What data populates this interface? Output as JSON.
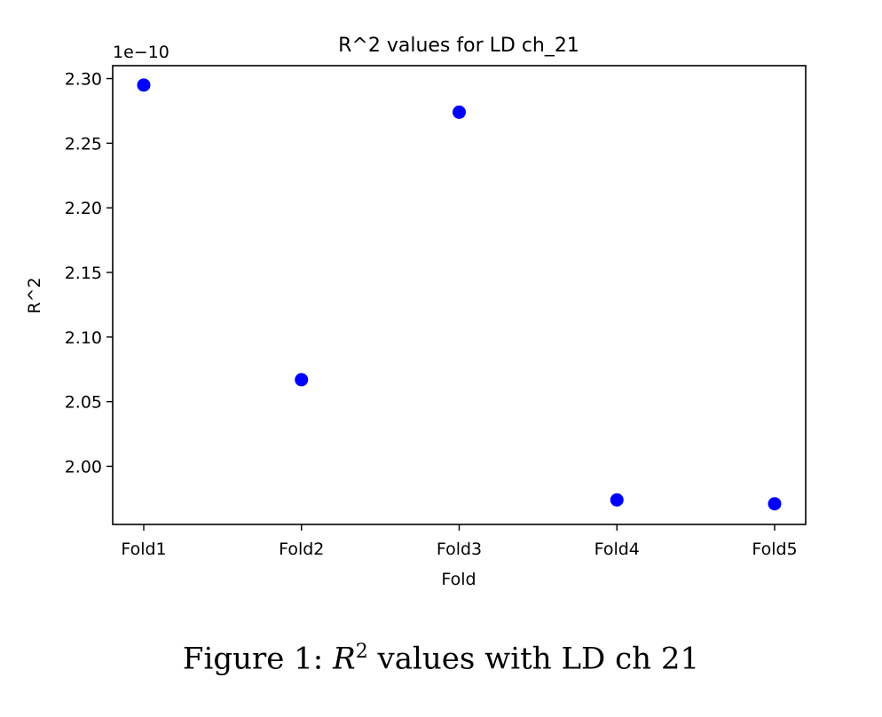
{
  "chart_data": {
    "type": "scatter",
    "title": "R^2 values for LD ch_21",
    "xlabel": "Fold",
    "ylabel": "R^2",
    "categories": [
      "Fold1",
      "Fold2",
      "Fold3",
      "Fold4",
      "Fold5"
    ],
    "values": [
      2.295,
      2.067,
      2.274,
      1.974,
      1.971
    ],
    "offset_text": "1e−10",
    "ylim": [
      1.955,
      2.31
    ],
    "yticks": [
      2.0,
      2.05,
      2.1,
      2.15,
      2.2,
      2.25,
      2.3
    ],
    "ytick_labels": [
      "2.00",
      "2.05",
      "2.10",
      "2.15",
      "2.20",
      "2.25",
      "2.30"
    ],
    "marker_color": "#0000ff",
    "grid": false
  },
  "caption": {
    "label": "Figure 1:",
    "math_symbol": "R",
    "math_exponent": "2",
    "text": "values with LD ch 21"
  }
}
